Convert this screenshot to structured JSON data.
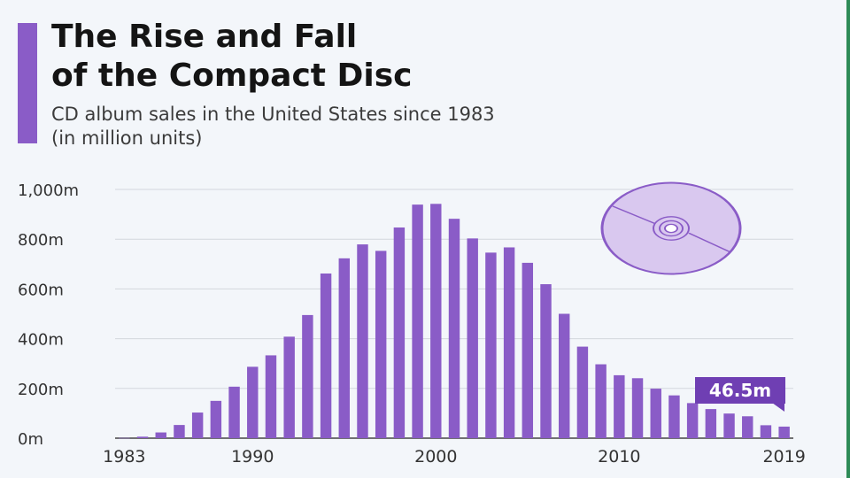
{
  "header": {
    "title_line1": "The Rise and Fall",
    "title_line2": "of the Compact Disc",
    "subtitle_line1": "CD album sales in the United States since 1983",
    "subtitle_line2": "(in million units)"
  },
  "callout": {
    "label": "46.5m"
  },
  "colors": {
    "bar": "#8a5cc7",
    "accent": "#8a5cc7",
    "callout": "#6f3fb3",
    "grid": "#d3d7dd"
  },
  "icon": {
    "name": "compact-disc-icon"
  },
  "chart_data": {
    "type": "bar",
    "title": "The Rise and Fall of the Compact Disc",
    "subtitle": "CD album sales in the United States since 1983 (in million units)",
    "xlabel": "",
    "ylabel": "",
    "ylim": [
      0,
      1000
    ],
    "y_ticks": [
      0,
      200,
      400,
      600,
      800,
      1000
    ],
    "y_tick_labels": [
      "0m",
      "200m",
      "400m",
      "600m",
      "800m",
      "1,000m"
    ],
    "x_tick_labels": [
      "1983",
      "1990",
      "2000",
      "2010",
      "2019"
    ],
    "grid": true,
    "categories": [
      "1983",
      "1984",
      "1985",
      "1986",
      "1987",
      "1988",
      "1989",
      "1990",
      "1991",
      "1992",
      "1993",
      "1994",
      "1995",
      "1996",
      "1997",
      "1998",
      "1999",
      "2000",
      "2001",
      "2002",
      "2003",
      "2004",
      "2005",
      "2006",
      "2007",
      "2008",
      "2009",
      "2010",
      "2011",
      "2012",
      "2013",
      "2014",
      "2015",
      "2016",
      "2017",
      "2018",
      "2019"
    ],
    "values": [
      1,
      6,
      23,
      53,
      103,
      150,
      207,
      287,
      333,
      408,
      495,
      662,
      723,
      779,
      753,
      847,
      939,
      942,
      882,
      803,
      746,
      767,
      705,
      619,
      500,
      368,
      297,
      253,
      241,
      199,
      172,
      141,
      117,
      99,
      88,
      52,
      46.5
    ],
    "annotations": [
      {
        "category": "2019",
        "text": "46.5m"
      }
    ]
  }
}
